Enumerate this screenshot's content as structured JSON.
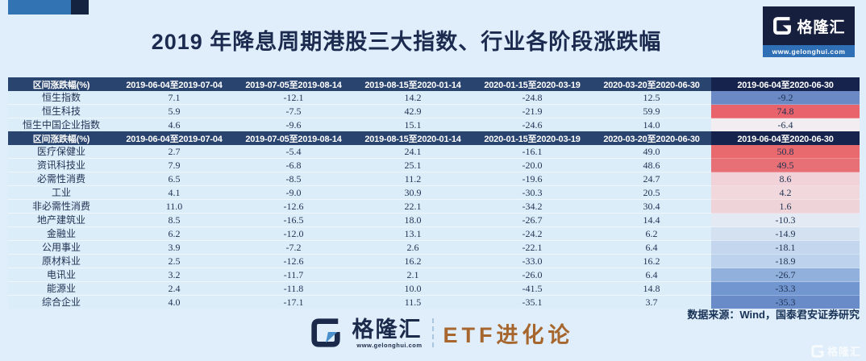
{
  "page": {
    "title": "2019 年降息周期港股三大指数、行业各阶段涨跌幅"
  },
  "branding": {
    "name": "格隆汇",
    "website": "www.gelonghui.com",
    "channel": "ETF进化论"
  },
  "source_note": "数据来源：Wind，国泰君安证券研究",
  "colors": {
    "page-bg": "#dfeefa",
    "header-bg": "#29446f",
    "header-total-bg": "#16234d",
    "row-bg": "#dcedfa",
    "text-dark": "#1e3252",
    "accent-blue": "#3273b4",
    "brand-navy": "#161f3d",
    "channel-bronze": "#a6662e"
  },
  "chart_data": [
    {
      "type": "table",
      "title": "港股三大指数各阶段涨跌幅",
      "columns": [
        "区间涨跌幅(%)",
        "2019-06-04至2019-07-04",
        "2019-07-05至2019-08-14",
        "2019-08-15至2020-01-14",
        "2020-01-15至2020-03-19",
        "2020-03-20至2020-06-30",
        "2019-06-04至2020-06-30"
      ],
      "rows": [
        {
          "label": "恒生指数",
          "values": [
            7.1,
            -12.1,
            14.2,
            -24.8,
            12.5,
            -9.2
          ],
          "heat_color": "#6a89c5"
        },
        {
          "label": "恒生科技",
          "values": [
            5.9,
            -7.5,
            42.9,
            -21.9,
            59.9,
            74.8
          ],
          "heat_color": "#e8636b"
        },
        {
          "label": "恒生中国企业指数",
          "values": [
            4.6,
            -9.6,
            15.1,
            -24.6,
            14.0,
            -6.4
          ],
          "heat_color": "#f2edf1"
        }
      ]
    },
    {
      "type": "table",
      "title": "港股行业各阶段涨跌幅",
      "columns": [
        "区间涨跌幅(%)",
        "2019-06-04至2019-07-04",
        "2019-07-05至2019-08-14",
        "2019-08-15至2020-01-14",
        "2020-01-15至2020-03-19",
        "2020-03-20至2020-06-30",
        "2019-06-04至2020-06-30"
      ],
      "rows": [
        {
          "label": "医疗保健业",
          "values": [
            2.7,
            -5.4,
            24.1,
            -16.1,
            49.0,
            50.8
          ],
          "heat_color": "#e8696e"
        },
        {
          "label": "资讯科技业",
          "values": [
            7.9,
            -6.8,
            25.1,
            -20.0,
            48.6,
            49.5
          ],
          "heat_color": "#e77076"
        },
        {
          "label": "必需性消费",
          "values": [
            6.5,
            -8.5,
            11.2,
            -19.6,
            24.7,
            8.6
          ],
          "heat_color": "#f0d2d8"
        },
        {
          "label": "工业",
          "values": [
            4.1,
            -9.0,
            30.9,
            -30.3,
            20.5,
            4.2
          ],
          "heat_color": "#f0d8dd"
        },
        {
          "label": "非必需性消费",
          "values": [
            11.0,
            -12.6,
            22.1,
            -34.2,
            30.4,
            1.6
          ],
          "heat_color": "#eed3d9"
        },
        {
          "label": "地产建筑业",
          "values": [
            8.5,
            -16.5,
            18.0,
            -26.7,
            14.4,
            -10.3
          ],
          "heat_color": "#e4eaf4"
        },
        {
          "label": "金融业",
          "values": [
            6.2,
            -12.0,
            13.1,
            -24.2,
            6.2,
            -14.9
          ],
          "heat_color": "#d4e1f1"
        },
        {
          "label": "公用事业",
          "values": [
            3.9,
            -7.2,
            2.6,
            -22.1,
            6.4,
            -18.1
          ],
          "heat_color": "#c3d6ed"
        },
        {
          "label": "原材料业",
          "values": [
            2.5,
            -12.6,
            16.2,
            -33.0,
            16.2,
            -18.9
          ],
          "heat_color": "#bdd2ec"
        },
        {
          "label": "电讯业",
          "values": [
            3.2,
            -11.7,
            2.1,
            -26.0,
            6.4,
            -26.7
          ],
          "heat_color": "#92b0dc"
        },
        {
          "label": "能源业",
          "values": [
            2.4,
            -11.8,
            10.0,
            -41.5,
            14.8,
            -33.3
          ],
          "heat_color": "#7296cf"
        },
        {
          "label": "综合企业",
          "values": [
            4.0,
            -17.1,
            11.5,
            -35.1,
            3.7,
            -35.3
          ],
          "heat_color": "#698cc9"
        }
      ]
    }
  ]
}
